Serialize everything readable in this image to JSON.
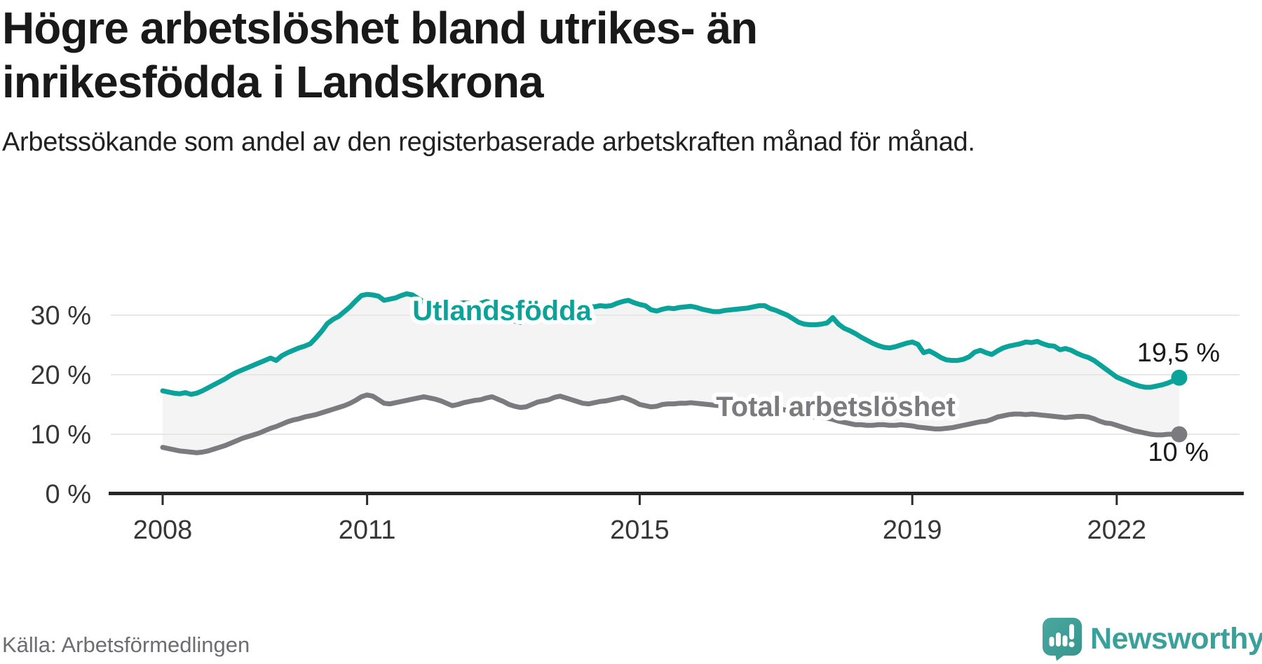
{
  "header": {
    "title": "Högre arbetslöshet bland utrikes- än inrikesfödda i Landskrona",
    "subtitle": "Arbetssökande som andel av den registerbaserade arbetskraften månad för månad."
  },
  "footer": {
    "source": "Källa: Arbetsförmedlingen",
    "brand": "Newsworthy"
  },
  "colors": {
    "accent_teal": "#0ba29a",
    "series_gray": "#7a7a7f",
    "fill_between": "rgba(120,120,128,0.08)",
    "gridline": "#e7e7e7",
    "axis": "#262626",
    "logo_teal": "#44a49c",
    "logo_teal_dark": "#35948c"
  },
  "chart_data": {
    "type": "line",
    "title": "Högre arbetslöshet bland utrikes- än inrikesfödda i Landskrona",
    "xlabel": "",
    "ylabel": "Arbetssökande som andel av den registerbaserade arbetskraften",
    "x_start": "2008-01",
    "x_interval": "month",
    "ylim": [
      0,
      35
    ],
    "grid": "horizontal",
    "legend_position": "inline-labels",
    "x_ticks": [
      {
        "label": "2008",
        "month": 0
      },
      {
        "label": "2011",
        "month": 36
      },
      {
        "label": "2015",
        "month": 84
      },
      {
        "label": "2019",
        "month": 132
      },
      {
        "label": "2022",
        "month": 168
      }
    ],
    "y_ticks": [
      {
        "label": "30 %",
        "value": 30
      },
      {
        "label": "20 %",
        "value": 20
      },
      {
        "label": "10 %",
        "value": 10
      },
      {
        "label": "0 %",
        "value": 0
      }
    ],
    "series": [
      {
        "name": "Utlandsfödda",
        "color": "#0ba29a",
        "end_label": "19,5 %",
        "end_value": 19.5,
        "values": [
          17.3,
          17.1,
          16.9,
          16.8,
          17.0,
          16.7,
          16.9,
          17.3,
          17.8,
          18.3,
          18.8,
          19.3,
          19.9,
          20.4,
          20.8,
          21.2,
          21.6,
          22.0,
          22.4,
          22.8,
          22.4,
          23.2,
          23.7,
          24.1,
          24.5,
          24.8,
          25.2,
          26.2,
          27.3,
          28.6,
          29.3,
          29.8,
          30.6,
          31.4,
          32.4,
          33.3,
          33.5,
          33.4,
          33.2,
          32.5,
          32.7,
          32.9,
          33.3,
          33.6,
          33.4,
          32.8,
          32.2,
          31.8,
          31.6,
          31.8,
          32.0,
          31.7,
          31.9,
          32.1,
          32.0,
          31.8,
          32.0,
          32.3,
          32.1,
          31.0,
          30.8,
          29.8,
          29.0,
          28.8,
          29.6,
          30.6,
          31.0,
          31.2,
          31.4,
          31.6,
          31.7,
          31.6,
          31.8,
          31.9,
          31.7,
          31.5,
          31.4,
          31.6,
          31.5,
          31.6,
          32.0,
          32.3,
          32.5,
          32.1,
          31.8,
          31.6,
          30.9,
          30.7,
          31.0,
          31.2,
          31.1,
          31.3,
          31.4,
          31.5,
          31.3,
          31.0,
          30.8,
          30.6,
          30.6,
          30.8,
          30.9,
          31.0,
          31.1,
          31.2,
          31.4,
          31.6,
          31.6,
          31.1,
          30.8,
          30.4,
          30.0,
          29.4,
          28.8,
          28.5,
          28.4,
          28.4,
          28.5,
          28.7,
          29.6,
          28.5,
          27.8,
          27.4,
          26.9,
          26.3,
          25.8,
          25.3,
          24.9,
          24.6,
          24.5,
          24.7,
          25.0,
          25.3,
          25.5,
          25.1,
          23.7,
          24.0,
          23.5,
          22.9,
          22.5,
          22.4,
          22.4,
          22.6,
          23.0,
          23.8,
          24.1,
          23.7,
          23.4,
          24.0,
          24.5,
          24.8,
          25.0,
          25.2,
          25.5,
          25.4,
          25.6,
          25.2,
          24.9,
          24.8,
          24.2,
          24.4,
          24.1,
          23.6,
          23.2,
          22.9,
          22.4,
          21.7,
          21.0,
          20.3,
          19.6,
          19.2,
          18.8,
          18.4,
          18.1,
          17.9,
          17.9,
          18.1,
          18.3,
          18.6,
          19.0,
          19.5
        ]
      },
      {
        "name": "Total arbetslöshet",
        "color": "#7a7a7f",
        "end_label": "10 %",
        "end_value": 10.0,
        "values": [
          7.8,
          7.6,
          7.4,
          7.2,
          7.1,
          7.0,
          6.9,
          7.0,
          7.2,
          7.5,
          7.8,
          8.1,
          8.5,
          8.9,
          9.3,
          9.6,
          9.9,
          10.2,
          10.6,
          11.0,
          11.3,
          11.7,
          12.1,
          12.4,
          12.6,
          12.9,
          13.1,
          13.3,
          13.6,
          13.9,
          14.2,
          14.5,
          14.8,
          15.2,
          15.7,
          16.3,
          16.6,
          16.4,
          15.8,
          15.2,
          15.1,
          15.3,
          15.5,
          15.7,
          15.9,
          16.1,
          16.3,
          16.1,
          15.9,
          15.6,
          15.2,
          14.8,
          15.0,
          15.3,
          15.5,
          15.7,
          15.8,
          16.1,
          16.3,
          15.9,
          15.5,
          15.0,
          14.7,
          14.5,
          14.6,
          15.0,
          15.4,
          15.6,
          15.8,
          16.2,
          16.4,
          16.1,
          15.8,
          15.5,
          15.2,
          15.1,
          15.3,
          15.5,
          15.6,
          15.8,
          16.0,
          16.2,
          15.9,
          15.5,
          15.0,
          14.8,
          14.6,
          14.7,
          15.0,
          15.1,
          15.1,
          15.2,
          15.2,
          15.3,
          15.2,
          15.1,
          15.0,
          14.9,
          14.8,
          14.9,
          15.0,
          15.1,
          15.2,
          15.3,
          15.2,
          15.1,
          14.9,
          14.6,
          14.4,
          14.2,
          14.0,
          13.7,
          13.4,
          13.2,
          13.0,
          12.9,
          12.8,
          12.7,
          12.5,
          12.2,
          12.0,
          11.8,
          11.6,
          11.6,
          11.5,
          11.5,
          11.6,
          11.6,
          11.5,
          11.5,
          11.6,
          11.5,
          11.4,
          11.2,
          11.1,
          11.0,
          10.9,
          10.9,
          11.0,
          11.1,
          11.3,
          11.5,
          11.7,
          11.9,
          12.1,
          12.2,
          12.5,
          12.9,
          13.1,
          13.3,
          13.4,
          13.4,
          13.3,
          13.4,
          13.3,
          13.2,
          13.1,
          13.0,
          12.9,
          12.8,
          12.9,
          13.0,
          13.0,
          12.9,
          12.6,
          12.2,
          11.9,
          11.8,
          11.5,
          11.2,
          10.9,
          10.6,
          10.4,
          10.2,
          10.0,
          9.9,
          9.9,
          10.0,
          10.0,
          10.0
        ]
      }
    ]
  }
}
